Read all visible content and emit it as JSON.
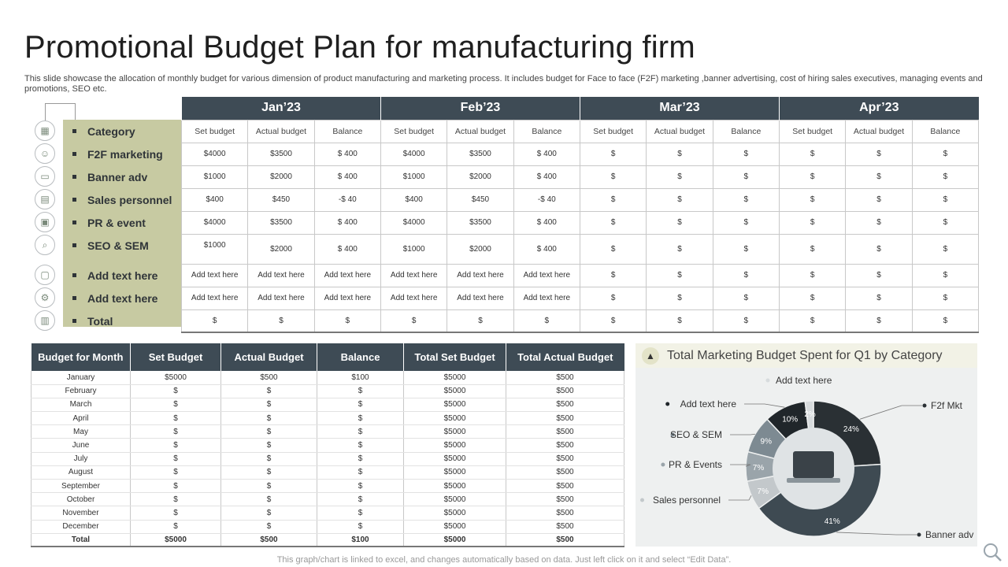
{
  "title": "Promotional Budget Plan for manufacturing firm",
  "subtitle": "This slide showcase the allocation of monthly budget for various dimension of product manufacturing and marketing process. It includes budget for Face to face (F2F) marketing ,banner advertising, cost of hiring sales executives, managing events and promotions, SEO etc.",
  "top_table": {
    "months": [
      "Jan’23",
      "Feb’23",
      "Mar’23",
      "Apr’23"
    ],
    "subheaders": [
      "Set budget",
      "Actual budget",
      "Balance"
    ],
    "category_label": "Category",
    "categories": [
      "F2F marketing",
      "Banner adv",
      "Sales personnel",
      "PR & event",
      "SEO & SEM",
      "Add text here",
      "Add text here",
      "Total"
    ],
    "rows": [
      [
        "$4000",
        "$3500",
        "$ 400",
        "$4000",
        "$3500",
        "$ 400",
        "$",
        "$",
        "$",
        "$",
        "$",
        "$"
      ],
      [
        "$1000",
        "$2000",
        "$ 400",
        "$1000",
        "$2000",
        "$ 400",
        "$",
        "$",
        "$",
        "$",
        "$",
        "$"
      ],
      [
        "$400",
        "$450",
        "-$ 40",
        "$400",
        "$450",
        "-$ 40",
        "$",
        "$",
        "$",
        "$",
        "$",
        "$"
      ],
      [
        "$4000",
        "$3500",
        "$ 400",
        "$4000",
        "$3500",
        "$ 400",
        "$",
        "$",
        "$",
        "$",
        "$",
        "$"
      ],
      [
        "$1000",
        "$2000",
        "$ 400",
        "$1000",
        "$2000",
        "$ 400",
        "$",
        "$",
        "$",
        "$",
        "$",
        "$"
      ],
      [
        "Add text here",
        "Add text here",
        "Add text here",
        "Add text here",
        "Add text here",
        "Add text here",
        "$",
        "$",
        "$",
        "$",
        "$",
        "$"
      ],
      [
        "Add text here",
        "Add text here",
        "Add text here",
        "Add text here",
        "Add text here",
        "Add text here",
        "$",
        "$",
        "$",
        "$",
        "$",
        "$"
      ],
      [
        "$",
        "$",
        "$",
        "$",
        "$",
        "$",
        "$",
        "$",
        "$",
        "$",
        "$",
        "$"
      ]
    ],
    "icons": [
      "grid-icon",
      "person-icon",
      "presentation-icon",
      "chart-board-icon",
      "calendar-icon",
      "magnifier-icon",
      "monitor-icon",
      "gear-icon",
      "calculator-icon"
    ]
  },
  "bottom_table": {
    "headers": [
      "Budget for Month",
      "Set Budget",
      "Actual Budget",
      "Balance",
      "Total Set Budget",
      "Total Actual Budget"
    ],
    "rows": [
      [
        "January",
        "$5000",
        "$500",
        "$100",
        "$5000",
        "$500"
      ],
      [
        "February",
        "$",
        "$",
        "$",
        "$5000",
        "$500"
      ],
      [
        "March",
        "$",
        "$",
        "$",
        "$5000",
        "$500"
      ],
      [
        "April",
        "$",
        "$",
        "$",
        "$5000",
        "$500"
      ],
      [
        "May",
        "$",
        "$",
        "$",
        "$5000",
        "$500"
      ],
      [
        "June",
        "$",
        "$",
        "$",
        "$5000",
        "$500"
      ],
      [
        "July",
        "$",
        "$",
        "$",
        "$5000",
        "$500"
      ],
      [
        "August",
        "$",
        "$",
        "$",
        "$5000",
        "$500"
      ],
      [
        "September",
        "$",
        "$",
        "$",
        "$5000",
        "$500"
      ],
      [
        "October",
        "$",
        "$",
        "$",
        "$5000",
        "$500"
      ],
      [
        "November",
        "$",
        "$",
        "$",
        "$5000",
        "$500"
      ],
      [
        "December",
        "$",
        "$",
        "$",
        "$5000",
        "$500"
      ]
    ],
    "total": [
      "Total",
      "$5000",
      "$500",
      "$100",
      "$5000",
      "$500"
    ]
  },
  "chart_data": {
    "type": "pie",
    "title": "Total Marketing Budget Spent for Q1 by Category",
    "slices": [
      {
        "label": "F2f Mkt",
        "value": 24,
        "color": "#2a3034"
      },
      {
        "label": "Banner adv",
        "value": 41,
        "color": "#3e4a52"
      },
      {
        "label": "Sales personnel",
        "value": 7,
        "color": "#c3c8cb"
      },
      {
        "label": "PR & Events",
        "value": 7,
        "color": "#9aa4aa"
      },
      {
        "label": "SEO & SEM",
        "value": 9,
        "color": "#7d8a92"
      },
      {
        "label": "Add text here",
        "value": 10,
        "color": "#20262a"
      },
      {
        "label": "",
        "value": 2,
        "color": "#d7dbdd"
      }
    ],
    "value_suffix": "%",
    "legend_placement": "around"
  },
  "footer": "This graph/chart is linked to excel,  and changes automatically based on data. Just left click on it and select “Edit Data”."
}
